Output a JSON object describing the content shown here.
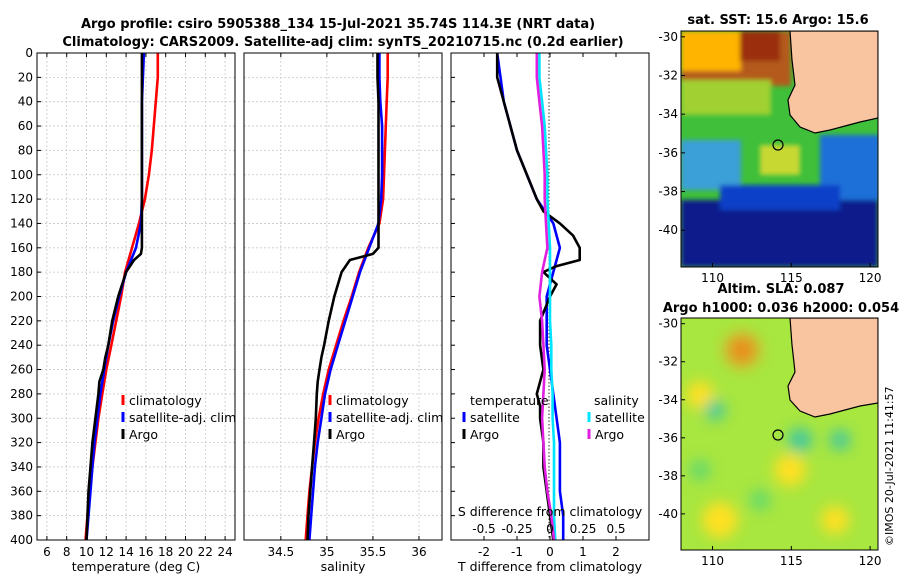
{
  "header": {
    "title_line1": "Argo profile: csiro 5905388_134 15-Jul-2021 35.74S 114.3E (NRT data)",
    "title_line2": "Climatology: CARS2009. Satellite-adj clim: synTS_20210715.nc (0.2d earlier)"
  },
  "colors": {
    "climatology": "#ff0000",
    "satellite": "#0000ff",
    "argo": "#000000",
    "sal_satellite": "#00e5ff",
    "sal_argo": "#e020e0",
    "land": "#f9c4a0"
  },
  "chart_data": [
    {
      "type": "line",
      "id": "temperature",
      "xlabel": "temperature (deg C)",
      "ylabel": "",
      "xlim": [
        5,
        25
      ],
      "ylim": [
        400,
        0
      ],
      "grid": true,
      "x_ticks": [
        "6",
        "8",
        "10",
        "12",
        "14",
        "16",
        "18",
        "20",
        "22",
        "24"
      ],
      "y_ticks": [
        "0",
        "20",
        "40",
        "60",
        "80",
        "100",
        "120",
        "140",
        "160",
        "180",
        "200",
        "220",
        "240",
        "260",
        "280",
        "300",
        "320",
        "340",
        "360",
        "380",
        "400"
      ],
      "legend": [
        "climatology",
        "satellite-adj. clim",
        "Argo"
      ],
      "legend_position": "bottom-right",
      "series": [
        {
          "name": "climatology",
          "color": "#ff0000",
          "depth": [
            0,
            20,
            40,
            60,
            80,
            100,
            120,
            140,
            160,
            180,
            200,
            220,
            240,
            260,
            280,
            300,
            320,
            340,
            360,
            380,
            400
          ],
          "values": [
            17.2,
            17.2,
            17.0,
            16.8,
            16.6,
            16.3,
            15.9,
            15.3,
            14.6,
            13.9,
            13.5,
            13.0,
            12.5,
            12.0,
            11.6,
            11.2,
            10.9,
            10.6,
            10.3,
            10.1,
            9.9
          ]
        },
        {
          "name": "satellite-adj. clim",
          "color": "#0000ff",
          "depth": [
            0,
            20,
            40,
            60,
            80,
            100,
            120,
            140,
            160,
            180,
            200,
            220,
            240,
            260,
            280,
            300,
            320,
            340,
            360,
            380,
            400
          ],
          "values": [
            15.8,
            15.7,
            15.6,
            15.6,
            15.6,
            15.6,
            15.6,
            15.5,
            15.0,
            14.0,
            13.3,
            12.7,
            12.2,
            11.8,
            11.4,
            11.1,
            10.8,
            10.6,
            10.4,
            10.2,
            10.0
          ]
        },
        {
          "name": "Argo",
          "color": "#000000",
          "depth": [
            0,
            20,
            40,
            60,
            80,
            100,
            120,
            140,
            160,
            165,
            170,
            180,
            200,
            220,
            240,
            250,
            260,
            270,
            280,
            300,
            320,
            340,
            360,
            380,
            400
          ],
          "values": [
            15.6,
            15.6,
            15.6,
            15.6,
            15.6,
            15.6,
            15.6,
            15.6,
            15.6,
            15.5,
            14.8,
            14.0,
            13.2,
            12.6,
            12.2,
            11.9,
            11.7,
            11.3,
            11.2,
            10.9,
            10.6,
            10.4,
            10.2,
            10.1,
            10.0
          ]
        }
      ]
    },
    {
      "type": "line",
      "id": "salinity",
      "xlabel": "salinity",
      "ylabel": "",
      "xlim": [
        34.1,
        36.25
      ],
      "ylim": [
        400,
        0
      ],
      "grid": true,
      "x_ticks": [
        "34.5",
        "35",
        "35.5",
        "36"
      ],
      "legend": [
        "climatology",
        "satellite-adj. clim",
        "Argo"
      ],
      "legend_position": "bottom-right",
      "series": [
        {
          "name": "climatology",
          "color": "#ff0000",
          "depth": [
            0,
            20,
            40,
            60,
            80,
            100,
            120,
            140,
            160,
            180,
            200,
            220,
            240,
            260,
            280,
            300,
            320,
            340,
            360,
            380,
            400
          ],
          "values": [
            35.66,
            35.66,
            35.65,
            35.64,
            35.63,
            35.62,
            35.61,
            35.57,
            35.45,
            35.35,
            35.27,
            35.18,
            35.1,
            35.02,
            34.96,
            34.91,
            34.87,
            34.84,
            34.81,
            34.79,
            34.77
          ]
        },
        {
          "name": "satellite-adj. clim",
          "color": "#0000ff",
          "depth": [
            0,
            20,
            40,
            60,
            80,
            100,
            120,
            140,
            160,
            180,
            200,
            220,
            240,
            260,
            280,
            300,
            320,
            340,
            360,
            380,
            400
          ],
          "values": [
            35.57,
            35.57,
            35.58,
            35.6,
            35.6,
            35.6,
            35.59,
            35.56,
            35.46,
            35.36,
            35.28,
            35.2,
            35.12,
            35.04,
            34.98,
            34.94,
            34.9,
            34.87,
            34.85,
            34.83,
            34.81
          ]
        },
        {
          "name": "Argo",
          "color": "#000000",
          "depth": [
            0,
            20,
            40,
            60,
            80,
            100,
            120,
            140,
            160,
            165,
            170,
            180,
            200,
            220,
            240,
            250,
            260,
            270,
            280,
            300,
            320,
            340,
            360,
            380,
            400
          ],
          "values": [
            35.55,
            35.55,
            35.56,
            35.56,
            35.56,
            35.56,
            35.56,
            35.56,
            35.56,
            35.5,
            35.25,
            35.16,
            35.08,
            35.02,
            34.97,
            34.94,
            34.92,
            34.9,
            34.89,
            34.88,
            34.86,
            34.84,
            34.82,
            34.8,
            34.79
          ]
        }
      ]
    },
    {
      "type": "line",
      "id": "difference",
      "xlabel": "T difference from climatology",
      "xlabel_top": "S difference from climatology",
      "xlim": [
        -3,
        3
      ],
      "ylim": [
        400,
        0
      ],
      "grid": false,
      "x_ticks": [
        "-2",
        "-1",
        "0",
        "1",
        "2"
      ],
      "top_ticks": [
        "-0.5",
        "-0.25",
        "0",
        "0.25",
        "0.5"
      ],
      "legend_temperature_title": "temperature",
      "legend_salinity_title": "salinity",
      "legend_temperature": [
        "satellite",
        "Argo"
      ],
      "legend_salinity": [
        "satellite",
        "Argo"
      ],
      "series": [
        {
          "name": "temperature satellite",
          "color": "#0000ff",
          "depth": [
            0,
            20,
            40,
            60,
            80,
            100,
            120,
            140,
            160,
            180,
            200,
            220,
            240,
            260,
            280,
            300,
            320,
            340,
            360,
            380,
            400
          ],
          "values": [
            -1.6,
            -1.5,
            -1.4,
            -1.2,
            -1.0,
            -0.7,
            -0.4,
            0.1,
            0.3,
            0.1,
            -0.1,
            -0.1,
            -0.1,
            0.0,
            0.1,
            0.2,
            0.3,
            0.3,
            0.3,
            0.4,
            0.4
          ]
        },
        {
          "name": "temperature Argo",
          "color": "#000000",
          "depth": [
            0,
            20,
            40,
            60,
            80,
            100,
            120,
            130,
            140,
            150,
            160,
            170,
            175,
            180,
            190,
            200,
            220,
            240,
            260,
            270,
            280,
            290,
            300,
            320,
            340,
            360,
            380,
            400
          ],
          "values": [
            -1.6,
            -1.6,
            -1.4,
            -1.2,
            -1.0,
            -0.7,
            -0.4,
            -0.2,
            0.3,
            0.7,
            0.9,
            0.9,
            0.2,
            -0.2,
            0.2,
            0.0,
            -0.3,
            -0.3,
            -0.2,
            -0.3,
            -0.4,
            -0.3,
            -0.3,
            -0.2,
            -0.2,
            -0.1,
            0.0,
            0.1
          ]
        },
        {
          "name": "salinity satellite",
          "color": "#00e5ff",
          "depth": [
            0,
            20,
            40,
            60,
            80,
            100,
            120,
            140,
            160,
            180,
            200,
            220,
            240,
            260,
            280,
            300,
            320,
            340,
            360,
            380,
            400
          ],
          "values": [
            -0.08,
            -0.08,
            -0.06,
            -0.04,
            -0.03,
            -0.02,
            -0.02,
            -0.01,
            0.0,
            0.0,
            0.0,
            0.0,
            0.01,
            0.01,
            0.02,
            0.02,
            0.03,
            0.03,
            0.03,
            0.03,
            0.04
          ]
        },
        {
          "name": "salinity Argo",
          "color": "#e020e0",
          "depth": [
            0,
            20,
            40,
            60,
            80,
            100,
            120,
            140,
            160,
            170,
            180,
            200,
            220,
            240,
            260,
            280,
            300,
            320,
            340,
            360,
            380,
            400
          ],
          "values": [
            -0.1,
            -0.1,
            -0.08,
            -0.06,
            -0.05,
            -0.04,
            -0.04,
            -0.03,
            -0.02,
            -0.04,
            -0.06,
            -0.08,
            -0.06,
            -0.05,
            -0.04,
            -0.05,
            -0.06,
            -0.05,
            -0.04,
            -0.02,
            0.01,
            0.03
          ]
        }
      ]
    },
    {
      "type": "heatmap",
      "id": "sst_map",
      "title": "sat. SST: 15.6 Argo: 15.6",
      "x_ticks": [
        "110",
        "115",
        "120"
      ],
      "y_ticks": [
        "-30",
        "-32",
        "-34",
        "-36",
        "-38",
        "-40"
      ],
      "xlim": [
        108,
        120.5
      ],
      "ylim": [
        -41.9,
        -29.7
      ],
      "marker": {
        "lon": 114.3,
        "lat": -35.74
      }
    },
    {
      "type": "heatmap",
      "id": "sla_map",
      "title_line1": "Altim. SLA: 0.087",
      "title_line2": "Argo h1000: 0.036 h2000: 0.054",
      "x_ticks": [
        "110",
        "115",
        "120"
      ],
      "y_ticks": [
        "-30",
        "-32",
        "-34",
        "-36",
        "-38",
        "-40"
      ],
      "xlim": [
        108,
        120.5
      ],
      "ylim": [
        -41.9,
        -29.7
      ],
      "marker": {
        "lon": 114.3,
        "lat": -35.74
      }
    }
  ],
  "footer": {
    "credit": "©IMOS 20-Jul-2021 11:41:57"
  }
}
